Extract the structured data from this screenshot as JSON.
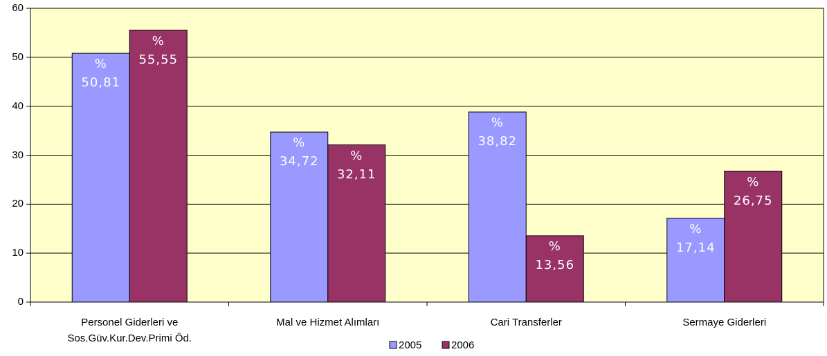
{
  "chart_data": {
    "type": "bar",
    "categories": [
      "Personel Giderleri ve\nSos.Güv.Kur.Dev.Primi Öd.",
      "Mal ve Hizmet Alımları",
      "Cari Transferler",
      "Sermaye Giderleri"
    ],
    "series": [
      {
        "name": "2005",
        "color": "#9999ff",
        "values": [
          50.81,
          34.72,
          38.82,
          17.14
        ],
        "value_labels": [
          "%\n50,81",
          "%\n34,72",
          "%\n38,82",
          "%\n17,14"
        ]
      },
      {
        "name": "2006",
        "color": "#993366",
        "values": [
          55.55,
          32.11,
          13.56,
          26.75
        ],
        "value_labels": [
          "%\n55,55",
          "%\n32,11",
          "%\n13,56",
          "%\n26,75"
        ]
      }
    ],
    "ylim": [
      0,
      60
    ],
    "yticks": [
      0,
      10,
      20,
      30,
      40,
      50,
      60
    ],
    "grid": true,
    "legend": "bottom"
  }
}
